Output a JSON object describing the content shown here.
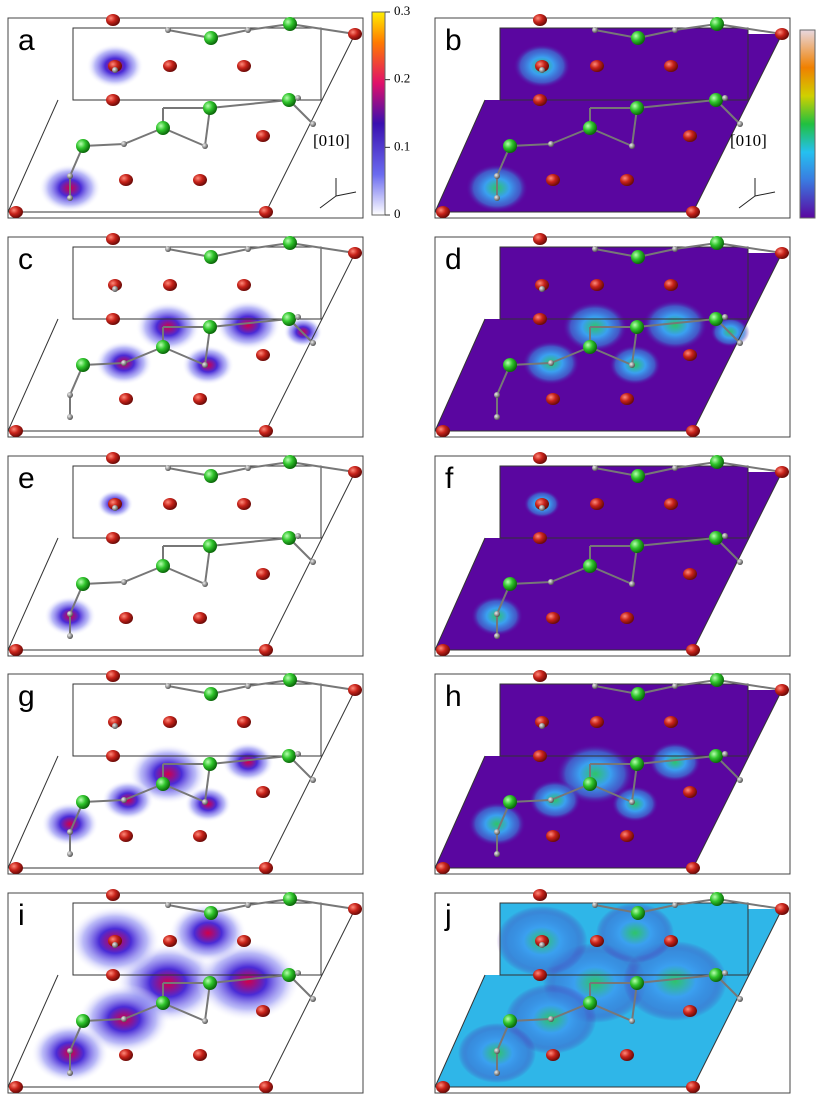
{
  "panels": [
    {
      "label": "a",
      "direction": "[010]"
    },
    {
      "label": "b",
      "direction": "[010]"
    },
    {
      "label": "c"
    },
    {
      "label": "d"
    },
    {
      "label": "e"
    },
    {
      "label": "f"
    },
    {
      "label": "g"
    },
    {
      "label": "h"
    },
    {
      "label": "i"
    },
    {
      "label": "j"
    }
  ],
  "colorbar": {
    "lim": [
      0,
      0.3
    ],
    "ticks": [
      0,
      0.1,
      0.2,
      0.3
    ]
  }
}
